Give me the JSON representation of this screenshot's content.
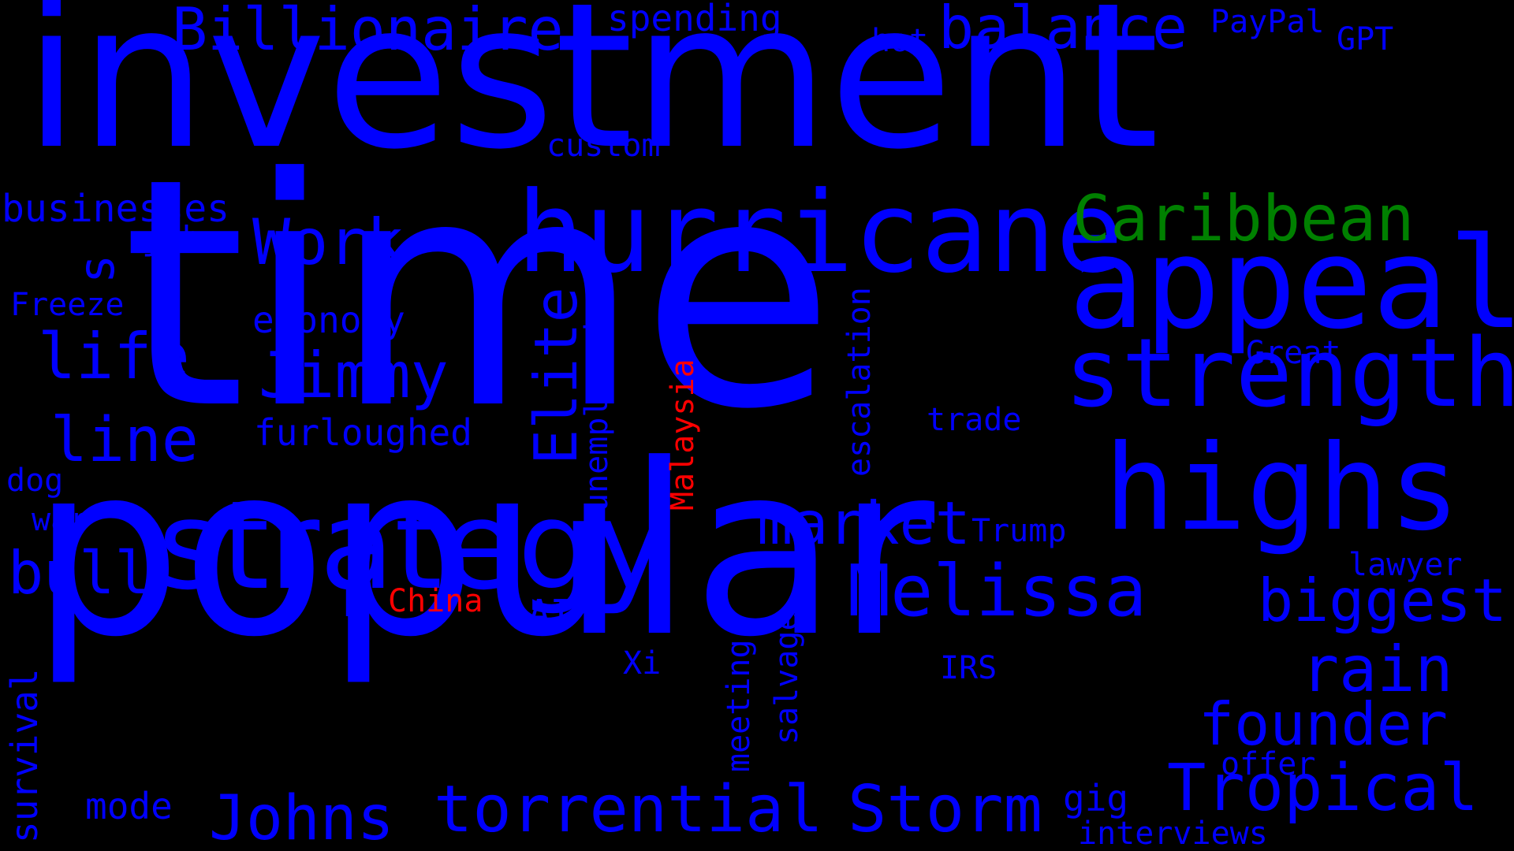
{
  "colors": {
    "background": "#000000",
    "primary": "#0000ff",
    "highlight_red": "#ff0000",
    "highlight_green": "#008000"
  },
  "words": {
    "investment": "investment",
    "time": "time",
    "popular": "popular",
    "hurricane": "hurricane",
    "appeal": "appeal",
    "strength": "strength",
    "highs": "highs",
    "strategy": "strategy",
    "caribbean": "Caribbean",
    "billionaire": "Billionaire",
    "balance": "balance",
    "spending": "spending",
    "paypal": "PayPal",
    "gpt": "GPT",
    "hot": "hot",
    "custom": "custom",
    "businesses": "businesses",
    "s": "s",
    "job": "job",
    "work": "Work",
    "freeze": "Freeze",
    "economy": "economy",
    "life": "life",
    "jimmy": "Jimmy",
    "elite": "Elite",
    "unemployed": "unemployed",
    "malaysia": "Malaysia",
    "escalation": "escalation",
    "great": "Great",
    "line": "line",
    "furloughed": "furloughed",
    "trade": "trade",
    "dog": "dog",
    "war": "war",
    "market": "market",
    "trump": "Trump",
    "lawyer": "lawyer",
    "bull": "bull",
    "melissa": "Melissa",
    "biggest": "biggest",
    "p": "P",
    "china": "China",
    "ai": "AI",
    "survival": "survival",
    "rain": "rain",
    "xi": "Xi",
    "meeting": "meeting",
    "salvage": "salvage",
    "irs": "IRS",
    "founder": "founder",
    "offer": "offer",
    "mode": "mode",
    "johns": "Johns",
    "torrential": "torrential",
    "storm": "Storm",
    "gig": "gig",
    "tropical": "Tropical",
    "interviews": "interviews"
  }
}
